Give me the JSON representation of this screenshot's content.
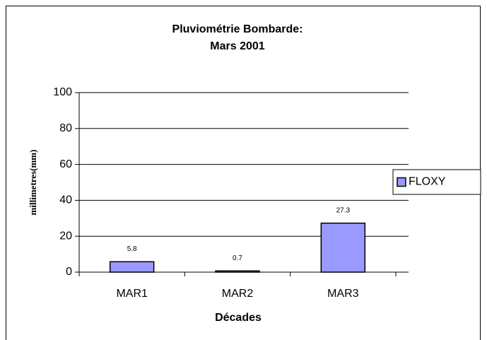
{
  "chart_data": {
    "type": "bar",
    "title": [
      "Pluviométrie Bombarde:",
      "Mars 2001"
    ],
    "x_label": "Décades",
    "y_label": "millimetres(mm)",
    "categories": [
      "MAR1",
      "MAR2",
      "MAR3"
    ],
    "series": [
      {
        "name": "FLOXY",
        "color": "#9999ff",
        "values": [
          5.8,
          0.7,
          27.3
        ]
      }
    ],
    "ylim": [
      0,
      100
    ],
    "yticks": [
      0,
      20,
      40,
      60,
      80,
      100
    ],
    "grid": true,
    "legend": "right"
  }
}
